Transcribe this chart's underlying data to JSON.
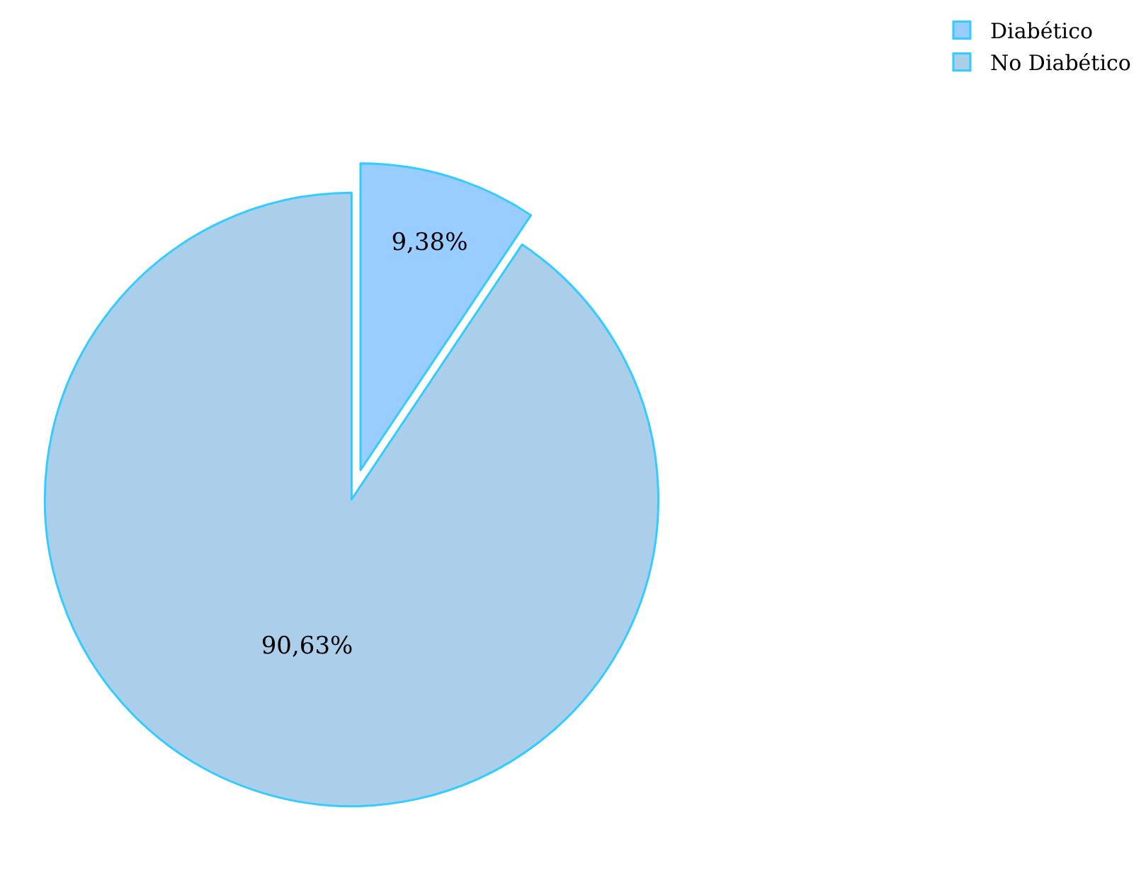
{
  "chart_data": {
    "type": "pie",
    "categories": [
      "Diabético",
      "No Diabético"
    ],
    "values": [
      9.38,
      90.63
    ],
    "value_labels": [
      "9,38%",
      "90,63%"
    ],
    "colors": [
      "#99ccff",
      "#abcfeb"
    ],
    "legend": "top right"
  }
}
